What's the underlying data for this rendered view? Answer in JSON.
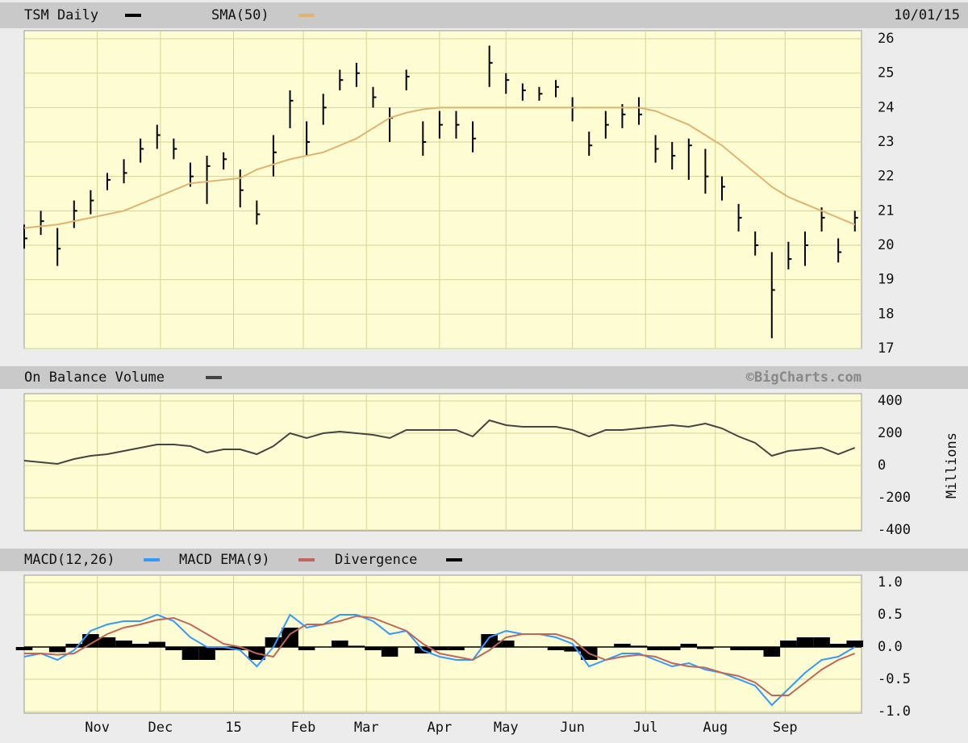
{
  "chart_data": [
    {
      "type": "ohlc",
      "title": "TSM Daily",
      "date": "10/01/15",
      "x": [
        0,
        5,
        10,
        15,
        20,
        25,
        30,
        35,
        40,
        45,
        50,
        55,
        60,
        65,
        70,
        75,
        80,
        85,
        90,
        95,
        100,
        105,
        110,
        115,
        120,
        125,
        130,
        135,
        140,
        145,
        150,
        155,
        160,
        165,
        170,
        175,
        180,
        185,
        190,
        195,
        200,
        205,
        210,
        215,
        220,
        225,
        230,
        235,
        240,
        245,
        250
      ],
      "xlim": [
        0,
        252
      ],
      "ylim": [
        17,
        26
      ],
      "yticks": [
        17,
        18,
        19,
        20,
        21,
        22,
        23,
        24,
        25,
        26
      ],
      "grid": true,
      "series": [
        {
          "name": "TSM Daily",
          "color": "#000000",
          "high": [
            20.6,
            21.0,
            20.5,
            21.3,
            21.6,
            22.1,
            22.5,
            23.1,
            23.5,
            23.1,
            22.4,
            22.6,
            22.7,
            22.2,
            21.3,
            23.2,
            24.5,
            23.6,
            24.4,
            25.1,
            25.3,
            24.6,
            24.0,
            25.1,
            23.6,
            23.9,
            23.9,
            23.6,
            25.8,
            25.0,
            24.7,
            24.6,
            24.8,
            24.3,
            23.3,
            23.9,
            24.1,
            24.3,
            23.2,
            23.0,
            23.1,
            22.8,
            22.0,
            21.2,
            20.4,
            19.8,
            20.1,
            20.4,
            21.1,
            20.2,
            21.0
          ],
          "low": [
            19.9,
            20.3,
            19.4,
            20.5,
            20.9,
            21.6,
            21.8,
            22.4,
            22.8,
            22.5,
            21.7,
            21.2,
            22.2,
            21.1,
            20.6,
            22.0,
            23.4,
            22.6,
            23.5,
            24.5,
            24.6,
            24.0,
            23.0,
            24.5,
            22.6,
            23.1,
            23.1,
            22.7,
            24.6,
            24.4,
            24.2,
            24.2,
            24.3,
            23.6,
            22.6,
            23.1,
            23.4,
            23.5,
            22.4,
            22.2,
            21.9,
            21.5,
            21.3,
            20.4,
            19.7,
            17.3,
            19.3,
            19.4,
            20.4,
            19.5,
            20.4
          ],
          "close": [
            20.2,
            20.7,
            19.9,
            21.0,
            21.3,
            21.9,
            22.1,
            22.8,
            23.2,
            22.8,
            22.0,
            22.3,
            22.5,
            21.6,
            20.9,
            22.7,
            24.2,
            23.0,
            24.0,
            24.8,
            25.0,
            24.3,
            23.7,
            24.9,
            23.0,
            23.5,
            23.5,
            23.1,
            25.3,
            24.8,
            24.5,
            24.4,
            24.6,
            24.0,
            22.9,
            23.5,
            23.8,
            23.8,
            22.8,
            22.6,
            22.9,
            22.0,
            21.7,
            20.8,
            20.0,
            18.7,
            19.6,
            20.0,
            20.8,
            19.8,
            20.8
          ]
        },
        {
          "name": "SMA(50)",
          "color": "#e0b46e",
          "values": [
            20.5,
            20.55,
            20.6,
            20.7,
            20.8,
            20.9,
            21.0,
            21.2,
            21.4,
            21.6,
            21.8,
            21.85,
            21.9,
            21.95,
            22.2,
            22.35,
            22.5,
            22.6,
            22.7,
            22.9,
            23.1,
            23.4,
            23.7,
            23.85,
            23.95,
            24.0,
            24.0,
            24.0,
            24.0,
            24.0,
            24.0,
            24.0,
            24.0,
            24.0,
            24.0,
            24.0,
            24.0,
            24.0,
            23.9,
            23.7,
            23.5,
            23.2,
            22.9,
            22.5,
            22.1,
            21.7,
            21.4,
            21.2,
            21.0,
            20.8,
            20.6
          ]
        }
      ]
    },
    {
      "type": "line",
      "title": "On Balance Volume",
      "source": "©BigCharts.com",
      "y_label": "Millions",
      "x": [
        0,
        5,
        10,
        15,
        20,
        25,
        30,
        35,
        40,
        45,
        50,
        55,
        60,
        65,
        70,
        75,
        80,
        85,
        90,
        95,
        100,
        105,
        110,
        115,
        120,
        125,
        130,
        135,
        140,
        145,
        150,
        155,
        160,
        165,
        170,
        175,
        180,
        185,
        190,
        195,
        200,
        205,
        210,
        215,
        220,
        225,
        230,
        235,
        240,
        245,
        250
      ],
      "xlim": [
        0,
        252
      ],
      "ylim": [
        -400,
        400
      ],
      "yticks": [
        -400,
        -200,
        0,
        200,
        400
      ],
      "grid": true,
      "series": [
        {
          "name": "On Balance Volume",
          "color": "#444444",
          "values": [
            30,
            20,
            10,
            40,
            60,
            70,
            90,
            110,
            130,
            130,
            120,
            80,
            100,
            100,
            70,
            120,
            200,
            170,
            200,
            210,
            200,
            190,
            170,
            220,
            220,
            220,
            220,
            180,
            280,
            250,
            240,
            240,
            240,
            220,
            180,
            220,
            220,
            230,
            240,
            250,
            240,
            260,
            230,
            180,
            140,
            60,
            90,
            100,
            110,
            70,
            110
          ]
        }
      ]
    },
    {
      "type": "macd",
      "x": [
        0,
        5,
        10,
        15,
        20,
        25,
        30,
        35,
        40,
        45,
        50,
        55,
        60,
        65,
        70,
        75,
        80,
        85,
        90,
        95,
        100,
        105,
        110,
        115,
        120,
        125,
        130,
        135,
        140,
        145,
        150,
        155,
        160,
        165,
        170,
        175,
        180,
        185,
        190,
        195,
        200,
        205,
        210,
        215,
        220,
        225,
        230,
        235,
        240,
        245,
        250
      ],
      "xlim": [
        0,
        252
      ],
      "ylim": [
        -1,
        1
      ],
      "xticks": [
        {
          "value": 22,
          "label": "Nov"
        },
        {
          "value": 41,
          "label": "Dec"
        },
        {
          "value": 63,
          "label": "15"
        },
        {
          "value": 84,
          "label": "Feb"
        },
        {
          "value": 103,
          "label": "Mar"
        },
        {
          "value": 125,
          "label": "Apr"
        },
        {
          "value": 145,
          "label": "May"
        },
        {
          "value": 165,
          "label": "Jun"
        },
        {
          "value": 187,
          "label": "Jul"
        },
        {
          "value": 208,
          "label": "Aug"
        },
        {
          "value": 229,
          "label": "Sep"
        }
      ],
      "yticks": [
        {
          "value": -1,
          "label": "-1.0"
        },
        -0.5,
        {
          "value": 0,
          "label": "0.0"
        },
        0.5,
        {
          "value": 1,
          "label": "1.0"
        }
      ],
      "grid": true,
      "series": [
        {
          "name": "MACD(12,26)",
          "color": "#3399ff",
          "values": [
            -0.15,
            -0.1,
            -0.2,
            -0.05,
            0.25,
            0.35,
            0.4,
            0.4,
            0.5,
            0.4,
            0.15,
            0.0,
            0.0,
            -0.05,
            -0.3,
            0.0,
            0.5,
            0.3,
            0.35,
            0.5,
            0.5,
            0.4,
            0.2,
            0.25,
            -0.05,
            -0.15,
            -0.2,
            -0.2,
            0.15,
            0.25,
            0.2,
            0.2,
            0.15,
            0.05,
            -0.3,
            -0.2,
            -0.1,
            -0.1,
            -0.2,
            -0.3,
            -0.25,
            -0.35,
            -0.4,
            -0.5,
            -0.6,
            -0.9,
            -0.65,
            -0.4,
            -0.2,
            -0.15,
            0.0
          ]
        },
        {
          "name": "MACD EMA(9)",
          "color": "#c0665a",
          "values": [
            -0.1,
            -0.1,
            -0.12,
            -0.1,
            0.05,
            0.2,
            0.3,
            0.35,
            0.42,
            0.45,
            0.35,
            0.2,
            0.05,
            0.0,
            -0.1,
            -0.15,
            0.2,
            0.35,
            0.35,
            0.4,
            0.48,
            0.45,
            0.35,
            0.25,
            0.05,
            -0.1,
            -0.15,
            -0.2,
            -0.05,
            0.15,
            0.2,
            0.2,
            0.2,
            0.12,
            -0.1,
            -0.2,
            -0.15,
            -0.12,
            -0.15,
            -0.25,
            -0.3,
            -0.32,
            -0.4,
            -0.45,
            -0.55,
            -0.75,
            -0.75,
            -0.55,
            -0.35,
            -0.2,
            -0.1
          ]
        },
        {
          "name": "Divergence",
          "color": "#000000",
          "bars": true,
          "values": [
            -0.05,
            0,
            -0.08,
            0.05,
            0.2,
            0.15,
            0.1,
            0.05,
            0.08,
            -0.05,
            -0.2,
            -0.2,
            -0.05,
            -0.05,
            -0.2,
            0.15,
            0.3,
            -0.05,
            0,
            0.1,
            0.02,
            -0.05,
            -0.15,
            0,
            -0.1,
            -0.05,
            -0.05,
            0,
            0.2,
            0.1,
            0,
            0,
            -0.05,
            -0.07,
            -0.2,
            0,
            0.05,
            0.02,
            -0.05,
            -0.05,
            0.05,
            -0.03,
            0,
            -0.05,
            -0.05,
            -0.15,
            0.1,
            0.15,
            0.15,
            0.05,
            0.1
          ]
        }
      ]
    }
  ]
}
